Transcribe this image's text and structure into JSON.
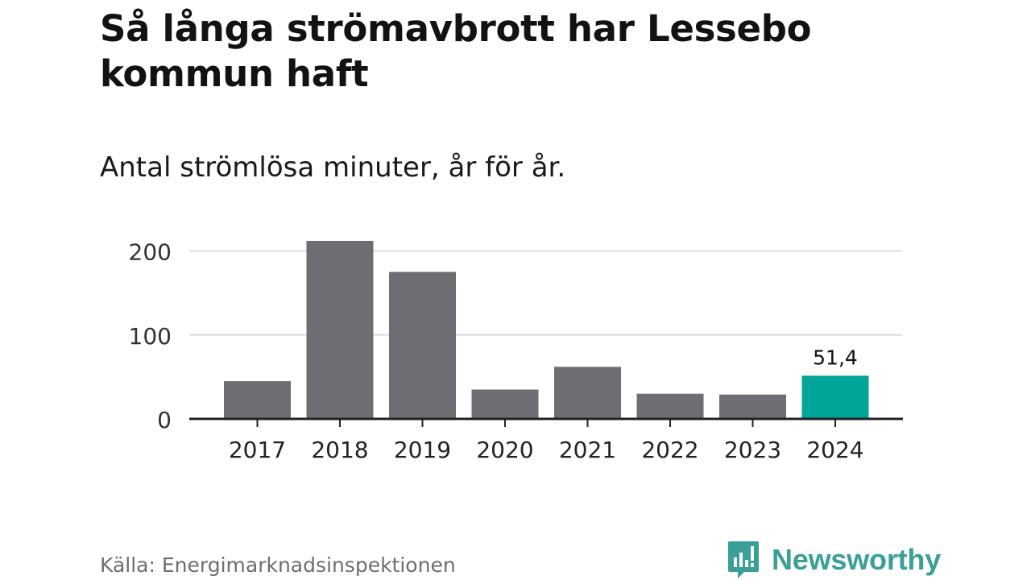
{
  "title": "Så långa strömavbrott har Lessebo kommun haft",
  "subtitle": "Antal strömlösa minuter, år för år.",
  "source": "Källa: Energimarknadsinspektionen",
  "brand": {
    "name": "Newsworthy",
    "icon": "newsworthy-logo-icon",
    "color": "#3a9f97"
  },
  "colors": {
    "bar": "#6e6d73",
    "highlight": "#00a499",
    "grid": "#dddddd",
    "axis": "#222222"
  },
  "chart_data": {
    "type": "bar",
    "title": "Så långa strömavbrott har Lessebo kommun haft",
    "subtitle": "Antal strömlösa minuter, år för år.",
    "categories": [
      "2017",
      "2018",
      "2019",
      "2020",
      "2021",
      "2022",
      "2023",
      "2024"
    ],
    "values": [
      45,
      212,
      175,
      35,
      62,
      30,
      29,
      51.4
    ],
    "highlight_index": 7,
    "data_labels": {
      "7": "51,4"
    },
    "yticks": [
      0,
      100,
      200
    ],
    "ytick_labels": [
      "0",
      "100",
      "200"
    ],
    "ylim": [
      0,
      212
    ],
    "xlabel": "",
    "ylabel": "",
    "grid": true
  }
}
